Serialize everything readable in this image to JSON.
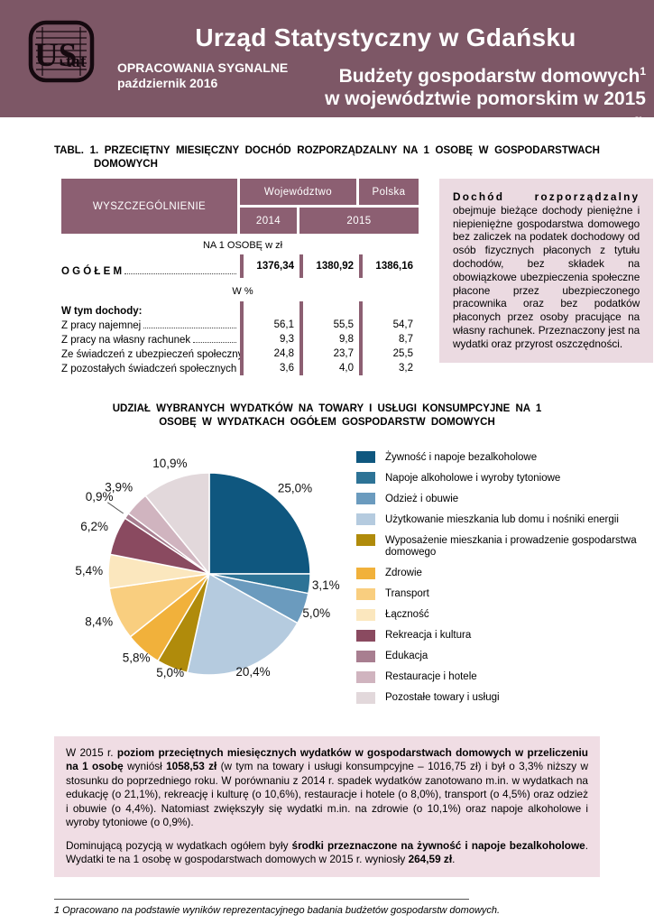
{
  "colors": {
    "header_bg": "#7D5766",
    "table_accent": "#8C5F72",
    "box_bg": "#EBDAE1",
    "summary_bg": "#F0DDE4"
  },
  "header": {
    "logo_text": "UStat",
    "org_name": "Urząd Statystyczny w Gdańsku",
    "series_label": "OPRACOWANIA SYGNALNE",
    "issue_date": "październik 2016",
    "report_title_line1": "Budżety gospodarstw domowych",
    "report_title_marker": "1",
    "report_title_line2": "w województwie pomorskim w 2015 r."
  },
  "table": {
    "title": "TABL. 1. PRZECIĘTNY MIESIĘCZNY DOCHÓD ROZPORZĄDZALNY NA 1 OSOBĘ W GOSPODARSTWACH DOMOWYCH",
    "stub_header": "WYSZCZEGÓLNIENIE",
    "col_group_wojewodztwo": "Województwo",
    "col_group_polska": "Polska",
    "col_year_2014": "2014",
    "col_year_2015": "2015",
    "caption_unit": "NA 1 OSOBĘ w zł",
    "total_label": "O G Ó Ł E M",
    "total_values": [
      "1376,34",
      "1380,92",
      "1386,16"
    ],
    "caption_percent": "W %",
    "section_label": "W tym dochody:",
    "rows": [
      {
        "label": "Z pracy najemnej",
        "values": [
          "56,1",
          "55,5",
          "54,7"
        ]
      },
      {
        "label": "Z pracy na własny rachunek",
        "values": [
          "9,3",
          "9,8",
          "8,7"
        ]
      },
      {
        "label": "Ze świadczeń z ubezpieczeń społecznych",
        "values": [
          "24,8",
          "23,7",
          "25,5"
        ]
      },
      {
        "label": "Z pozostałych świadczeń społecznych",
        "values": [
          "3,6",
          "4,0",
          "3,2"
        ]
      }
    ]
  },
  "definition_box": {
    "term": "Dochód rozporządzalny",
    "body": "obejmuje bieżące dochody pieniężne i niepieniężne gospodarstwa domowego bez zaliczek na podatek dochodowy od osób fizycznych płaconych z tytułu dochodów, bez składek na obowiązkowe ubezpieczenia społeczne płacone przez ubezpieczonego pracownika oraz bez podatków płaconych przez osoby pracujące na własny rachunek. Przeznaczony jest na wydatki oraz przyrost oszczędności."
  },
  "chart_data": {
    "type": "pie",
    "title": "UDZIAŁ WYBRANYCH WYDATKÓW NA TOWARY I USŁUGI KONSUMPCYJNE NA 1 OSOBĘ W WYDATKACH OGÓŁEM GOSPODARSTW DOMOWYCH",
    "start_angle_deg": 0,
    "direction": "clockwise",
    "legend_position": "right",
    "slices": [
      {
        "label": "Żywność i napoje bezalkoholowe",
        "value": 25.0,
        "display": "25,0%",
        "color": "#0F577F",
        "label_r": 1.2
      },
      {
        "label": "Napoje alkoholowe i wyroby tytoniowe",
        "value": 3.1,
        "display": "3,1%",
        "color": "#2D7396",
        "label_r": 1.16
      },
      {
        "label": "Odzież i obuwie",
        "value": 5.0,
        "display": "5,0%",
        "color": "#6B9BBE",
        "label_r": 1.13
      },
      {
        "label": "Użytkowanie mieszkania lub domu i nośniki energii",
        "value": 20.4,
        "display": "20,4%",
        "color": "#B5CBDF",
        "label_r": 1.06
      },
      {
        "label": "Wyposażenie mieszkania i prowadzenie gospodarstwa domowego",
        "value": 5.0,
        "display": "5,0%",
        "color": "#B08B0B",
        "label_r": 1.05
      },
      {
        "label": "Zdrowie",
        "value": 5.8,
        "display": "5,8%",
        "color": "#F1B13B",
        "label_r": 1.1
      },
      {
        "label": "Transport",
        "value": 8.4,
        "display": "8,4%",
        "color": "#F9CE7F",
        "label_r": 1.19
      },
      {
        "label": "Łączność",
        "value": 5.4,
        "display": "5,4%",
        "color": "#FBE7BE",
        "label_r": 1.19
      },
      {
        "label": "Rekreacja i kultura",
        "value": 6.2,
        "display": "6,2%",
        "color": "#8A4A60",
        "label_r": 1.23
      },
      {
        "label": "Edukacja",
        "value": 0.9,
        "display": "0,9%",
        "color": "#A87E90",
        "label_r": 1.33,
        "leader": true
      },
      {
        "label": "Restauracje i hotele",
        "value": 3.9,
        "display": "3,9%",
        "color": "#D0B4BF",
        "label_r": 1.24
      },
      {
        "label": "Pozostałe towary i usługi",
        "value": 10.9,
        "display": "10,9%",
        "color": "#E2D8DB",
        "label_r": 1.16
      }
    ]
  },
  "summary": {
    "paragraph1": [
      {
        "t": "W 2015 r. ",
        "b": false
      },
      {
        "t": "poziom przeciętnych miesięcznych wydatków w gospodarstwach domowych w przeliczeniu na 1 osobę",
        "b": true
      },
      {
        "t": " wyniósł ",
        "b": false
      },
      {
        "t": "1058,53 zł",
        "b": true
      },
      {
        "t": " (w tym na towary i usługi konsumpcyjne – 1016,75 zł) i był o 3,3% niższy w stosunku do poprzedniego roku. W porównaniu z 2014 r. spadek wydatków zanotowano m.in. w wydatkach na edukację (o 21,1%), rekreację i kulturę (o 10,6%), restauracje i hotele (o 8,0%), transport (o 4,5%) oraz odzież i obuwie (o 4,4%). Natomiast zwiększyły się wydatki m.in. na zdrowie (o 10,1%) oraz napoje alkoholowe i wyroby tytoniowe (o 0,9%).",
        "b": false
      }
    ],
    "paragraph2": [
      {
        "t": "Dominującą pozycją w wydatkach ogółem były ",
        "b": false
      },
      {
        "t": "środki przeznaczone na żywność i napoje bezalkoholowe",
        "b": true
      },
      {
        "t": ". Wydatki te na 1 osobę w gospodarstwach domowych w 2015 r. wyniosły ",
        "b": false
      },
      {
        "t": "264,59 zł",
        "b": true
      },
      {
        "t": ".",
        "b": false
      }
    ]
  },
  "footnote": "1 Opracowano na podstawie wyników reprezentacyjnego badania budżetów gospodarstw domowych."
}
